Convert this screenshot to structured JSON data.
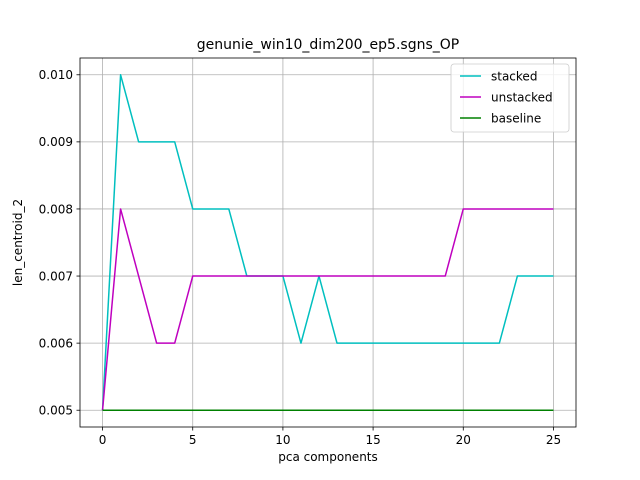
{
  "chart_data": {
    "type": "line",
    "title": "genunie_win10_dim200_ep5.sgns_OP",
    "xlabel": "pca components",
    "ylabel": "len_centroid_2",
    "xlim": [
      -1.25,
      26.25
    ],
    "ylim": [
      0.00475,
      0.01025
    ],
    "xticks": [
      0,
      5,
      10,
      15,
      20,
      25
    ],
    "xtick_labels": [
      "0",
      "5",
      "10",
      "15",
      "20",
      "25"
    ],
    "yticks": [
      0.005,
      0.006,
      0.007,
      0.008,
      0.009,
      0.01
    ],
    "ytick_labels": [
      "0.005",
      "0.006",
      "0.007",
      "0.008",
      "0.009",
      "0.010"
    ],
    "grid": true,
    "legend_position": "top-right",
    "x": [
      0,
      1,
      2,
      3,
      4,
      5,
      6,
      7,
      8,
      9,
      10,
      11,
      12,
      13,
      14,
      15,
      16,
      17,
      18,
      19,
      20,
      21,
      22,
      23,
      24,
      25
    ],
    "series": [
      {
        "name": "stacked",
        "color": "#00bfbf",
        "values": [
          0.005,
          0.01,
          0.009,
          0.009,
          0.009,
          0.008,
          0.008,
          0.008,
          0.007,
          0.007,
          0.007,
          0.006,
          0.007,
          0.006,
          0.006,
          0.006,
          0.006,
          0.006,
          0.006,
          0.006,
          0.006,
          0.006,
          0.006,
          0.007,
          0.007,
          0.007
        ]
      },
      {
        "name": "unstacked",
        "color": "#bf00bf",
        "values": [
          0.005,
          0.008,
          0.007,
          0.006,
          0.006,
          0.007,
          0.007,
          0.007,
          0.007,
          0.007,
          0.007,
          0.007,
          0.007,
          0.007,
          0.007,
          0.007,
          0.007,
          0.007,
          0.007,
          0.007,
          0.008,
          0.008,
          0.008,
          0.008,
          0.008,
          0.008
        ]
      },
      {
        "name": "baseline",
        "color": "#008000",
        "values": [
          0.005,
          0.005,
          0.005,
          0.005,
          0.005,
          0.005,
          0.005,
          0.005,
          0.005,
          0.005,
          0.005,
          0.005,
          0.005,
          0.005,
          0.005,
          0.005,
          0.005,
          0.005,
          0.005,
          0.005,
          0.005,
          0.005,
          0.005,
          0.005,
          0.005,
          0.005
        ]
      }
    ]
  }
}
